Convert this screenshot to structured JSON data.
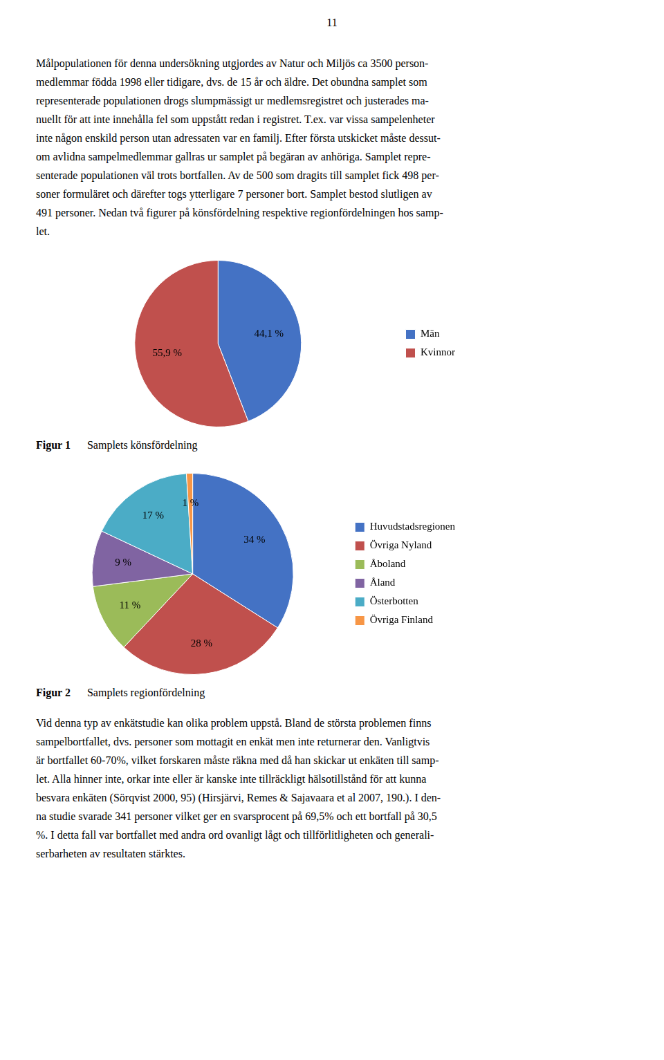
{
  "page_number": "11",
  "body_text": [
    "Målpopulationen för denna undersökning utgjordes av Natur och Miljös ca 3500 person-",
    "medlemmar födda 1998 eller tidigare, dvs. de 15 år och äldre. Det obundna samplet som",
    "representerade populationen drogs slumpmässigt ur medlemsregistret och justerades ma-",
    "nuellt för att inte innehålla fel som uppstått redan i registret. T.ex. var vissa sampelenheter",
    "inte någon enskild person utan adressaten var en familj. Efter första utskicket måste dessut-",
    "om avlidna sampelmedlemmar gallras ur samplet på begäran av anhöriga. Samplet repre-",
    "senterade populationen väl trots bortfallen. Av de 500 som dragits till samplet fick 498 per-",
    "soner formuläret och därefter togs ytterligare 7 personer bort. Samplet bestod slutligen av",
    "491 personer. Nedan två figurer på könsfördelning respektive regionfördelningen hos samp-",
    "let."
  ],
  "chart_data": [
    {
      "type": "pie",
      "title": "Figur 1",
      "subtitle": "Samplets könsfördelning",
      "categories": [
        "Män",
        "Kvinnor"
      ],
      "values": [
        44.1,
        55.9
      ],
      "value_labels": [
        "44,1 %",
        "55,9 %"
      ],
      "colors": [
        "#4472c4",
        "#c0504d"
      ],
      "data_labels": true,
      "legend": "right"
    },
    {
      "type": "pie",
      "title": "Figur 2",
      "subtitle": "Samplets regionfördelning",
      "categories": [
        "Huvudstadsregionen",
        "Övriga Nyland",
        "Åboland",
        "Åland",
        "Österbotten",
        "Övriga Finland"
      ],
      "values": [
        34,
        28,
        11,
        9,
        17,
        1
      ],
      "value_labels": [
        "34 %",
        "28 %",
        "11 %",
        "9 %",
        "17 %",
        "1 %"
      ],
      "colors": [
        "#4472c4",
        "#c0504d",
        "#9bbb59",
        "#8064a2",
        "#4bacc6",
        "#f79646"
      ],
      "data_labels": true,
      "legend": "right"
    }
  ],
  "body_text_after": [
    "Vid denna typ av enkätstudie kan olika problem uppstå. Bland de största problemen finns",
    "sampelbortfallet, dvs. personer som mottagit en enkät men inte returnerar den. Vanligtvis",
    "är bortfallet 60-70%, vilket forskaren måste räkna med då han skickar ut enkäten till samp-",
    "let. Alla hinner inte, orkar inte eller är kanske inte tillräckligt hälsotillstånd för att kunna",
    "besvara enkäten (Sörqvist 2000, 95) (Hirsjärvi, Remes & Sajavaara et al 2007, 190.). I den-",
    "na studie svarade 341 personer vilket ger en svarsprocent på 69,5% och ett bortfall på 30,5",
    "%. I detta fall var bortfallet med andra ord ovanligt lågt och tillförlitligheten och generali-",
    "serbarheten av resultaten stärktes."
  ]
}
